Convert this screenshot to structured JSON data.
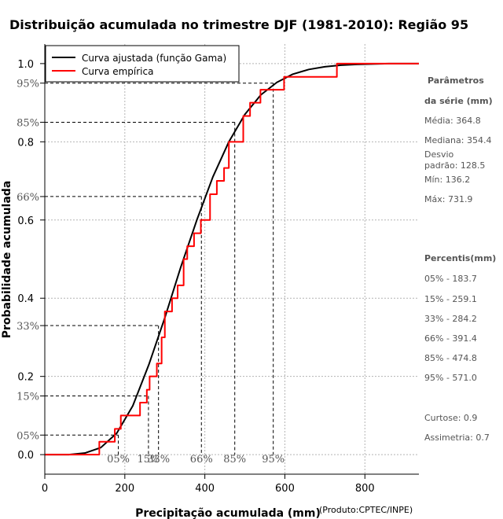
{
  "chart_data": {
    "type": "line",
    "title": "Distribuição acumulada no trimestre DJF (1981-2010): Região 95",
    "xlabel": "Precipitação acumulada (mm)",
    "ylabel": "Probabilidade acumulada",
    "credit": "(Produto:CPTEC/INPE)",
    "xlim": [
      0,
      935
    ],
    "ylim": [
      -0.05,
      1.05
    ],
    "x_ticks": [
      0,
      200,
      400,
      600,
      800
    ],
    "y_ticks": [
      0.0,
      0.2,
      0.4,
      0.6,
      0.8,
      1.0
    ],
    "y_tick_labels": [
      "0.0",
      "0.2",
      "0.4",
      "0.6",
      "0.8",
      "1.0"
    ],
    "grid": true,
    "legend": {
      "position": "top-left",
      "entries": [
        {
          "name": "Curva ajustada (função Gama)",
          "color": "#000000"
        },
        {
          "name": "Curva empírica",
          "color": "#ff0000"
        }
      ]
    },
    "series": [
      {
        "name": "Curva ajustada (função Gama)",
        "color": "#000000",
        "x": [
          0,
          60,
          100,
          140,
          180,
          220,
          260,
          300,
          340,
          380,
          420,
          460,
          500,
          540,
          580,
          620,
          660,
          700,
          740,
          780,
          820,
          860,
          900,
          935
        ],
        "y": [
          0.0,
          0.0,
          0.004,
          0.018,
          0.055,
          0.125,
          0.23,
          0.35,
          0.48,
          0.6,
          0.71,
          0.8,
          0.87,
          0.92,
          0.952,
          0.973,
          0.985,
          0.992,
          0.996,
          0.998,
          0.999,
          1.0,
          1.0,
          1.0
        ]
      },
      {
        "name": "Curva empírica",
        "color": "#ff0000",
        "step": true,
        "x": [
          0,
          136.2,
          175,
          190,
          238,
          255,
          262,
          280,
          292,
          300,
          318,
          332,
          347,
          356,
          373,
          390,
          413,
          430,
          448,
          460,
          496,
          513,
          539,
          598,
          730,
          935
        ],
        "y": [
          0.0,
          0.033,
          0.066,
          0.1,
          0.133,
          0.166,
          0.2,
          0.233,
          0.3,
          0.366,
          0.4,
          0.433,
          0.5,
          0.533,
          0.566,
          0.6,
          0.666,
          0.7,
          0.733,
          0.8,
          0.866,
          0.9,
          0.933,
          0.966,
          1.0,
          1.0
        ]
      }
    ],
    "percentile_markers": {
      "x": [
        183.7,
        259.1,
        284.2,
        391.4,
        474.8,
        571.0
      ],
      "y": [
        0.05,
        0.15,
        0.33,
        0.66,
        0.85,
        0.95
      ],
      "y_labels": [
        "05%",
        "15%",
        "33%",
        "66%",
        "85%",
        "95%"
      ],
      "x_labels": [
        "05%",
        "15%",
        "33%",
        "66%",
        "85%",
        "95%"
      ]
    }
  },
  "side_panel": {
    "params_title_1": "Parâmetros",
    "params_title_2": "da série (mm)",
    "media": "Média: 364.8",
    "mediana": "Mediana: 354.4",
    "desvio_1": "Desvio",
    "desvio_2": "padrão: 128.5",
    "min": "Mín: 136.2",
    "max": "Máx: 731.9",
    "percentis_title": "Percentis(mm)",
    "p05": "05% - 183.7",
    "p15": "15% - 259.1",
    "p33": "33% - 284.2",
    "p66": "66% - 391.4",
    "p85": "85% - 474.8",
    "p95": "95% - 571.0",
    "curtose": "Curtose: 0.9",
    "assimetria": "Assimetria: 0.7"
  }
}
